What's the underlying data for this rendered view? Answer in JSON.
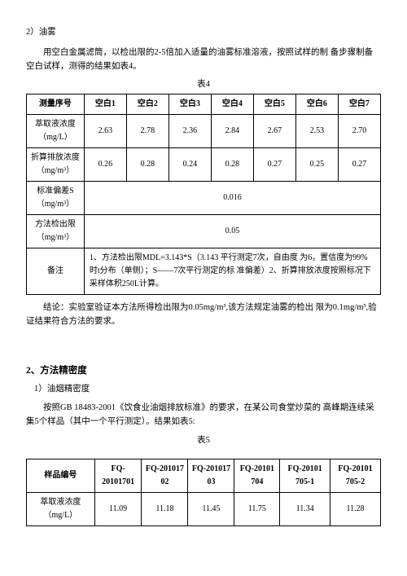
{
  "sec1": {
    "heading": "2）油雾",
    "para": "用空白金属滤筒，以检出限的2-5倍加入适量的油雾标准溶液，按照试样的制 备步骤制备空白试样，测得的结果如表4。",
    "caption": "表4"
  },
  "t4": {
    "headers": [
      "测量序号",
      "空白1",
      "空白2",
      "空白3",
      "空白4",
      "空白5",
      "空白6",
      "空白7"
    ],
    "row1_label": "萃取液浓度（mg/L）",
    "row1": [
      "2.63",
      "2.78",
      "2.36",
      "2.84",
      "2.67",
      "2.53",
      "2.70"
    ],
    "row2_label": "折算排放浓度（mg/m³）",
    "row2": [
      "0.26",
      "0.28",
      "0.24",
      "0.28",
      "0.27",
      "0.25",
      "0.27"
    ],
    "row3_label": "标准偏差S（mg/m³）",
    "row3_val": "0.016",
    "row4_label": "方法检出限（mg/m³）",
    "row4_val": "0.05",
    "note_label": "备注",
    "note": "1、方法检出限MDL=3.143*S（3.143 平行测定7次，自由度 为6，置信度为99%时t分布（单侧）；S——7次平行测定的标 准偏差）2、折算排放浓度按照标况下采样体积250L计算。"
  },
  "concl": "结论：实验室验证本方法所得检出限为0.05mg/m³,该方法规定油雾的检出 限为0.1mg/m³,验证结果符合方法的要求。",
  "sec2": {
    "major": "2、方法精密度",
    "sub": "1）油烟精密度",
    "para": "按照GB 18483-2001《饮食业油烟排放标准》的要求，在某公司食堂炒菜的 高峰期连续采集5个样品（其中一个平行测定）。结果如表5:",
    "caption": "表5"
  },
  "t5": {
    "headers": [
      "样品编号",
      "FQ-20101701",
      "FQ-201017 02",
      "FQ-201017 03",
      "FQ-20101 704",
      "FQ-20101 705-1",
      "FQ-20101 705-2"
    ],
    "row1_label": "萃取液浓度（mg/L）",
    "row1": [
      "11.09",
      "11.18",
      "11.45",
      "11.75",
      "11.34",
      "11.28"
    ]
  }
}
